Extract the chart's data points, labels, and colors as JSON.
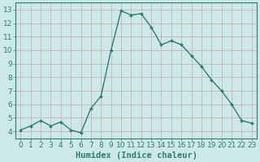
{
  "x": [
    0,
    1,
    2,
    3,
    4,
    5,
    6,
    7,
    8,
    9,
    10,
    11,
    12,
    13,
    14,
    15,
    16,
    17,
    18,
    19,
    20,
    21,
    22,
    23
  ],
  "y": [
    4.1,
    4.4,
    4.8,
    4.4,
    4.7,
    4.1,
    3.9,
    5.7,
    6.6,
    10.0,
    12.9,
    12.6,
    12.7,
    11.7,
    10.4,
    10.7,
    10.4,
    9.6,
    8.8,
    7.8,
    7.0,
    6.0,
    4.8,
    4.6
  ],
  "line_color": "#2e7d6e",
  "marker": "D",
  "marker_size": 2.0,
  "line_width": 1.0,
  "bg_color": "#cce8e8",
  "grid_color_major": "#b8d4d4",
  "grid_color_minor": "#d4e8e8",
  "xlabel": "Humidex (Indice chaleur)",
  "ylabel": "",
  "xlim": [
    -0.5,
    23.5
  ],
  "ylim": [
    3.5,
    13.5
  ],
  "yticks": [
    4,
    5,
    6,
    7,
    8,
    9,
    10,
    11,
    12,
    13
  ],
  "xticks": [
    0,
    1,
    2,
    3,
    4,
    5,
    6,
    7,
    8,
    9,
    10,
    11,
    12,
    13,
    14,
    15,
    16,
    17,
    18,
    19,
    20,
    21,
    22,
    23
  ],
  "tick_fontsize": 6.5,
  "xlabel_fontsize": 7.5
}
